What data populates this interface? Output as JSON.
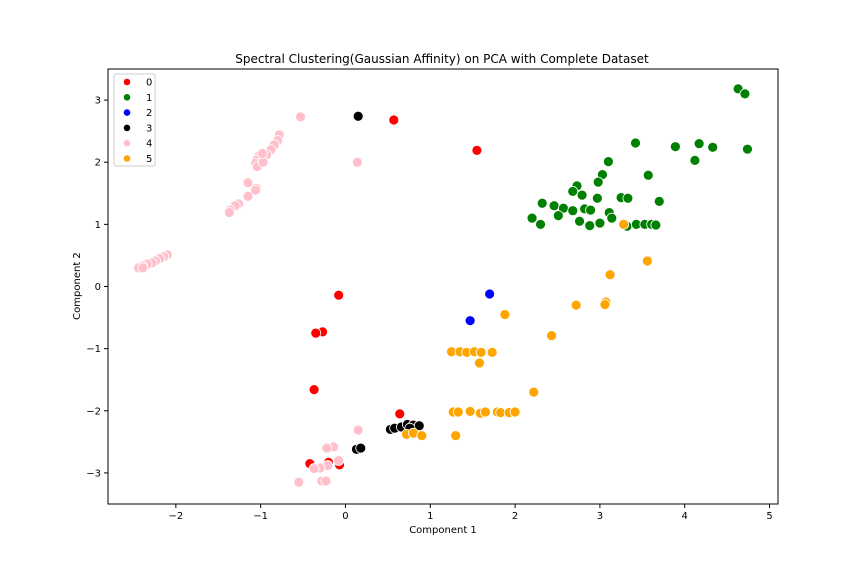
{
  "chart_data": {
    "type": "scatter",
    "title": "Spectral Clustering(Gaussian Affinity) on PCA with Complete Dataset",
    "xlabel": "Component 1",
    "ylabel": "Component 2",
    "xlim": [
      -2.8,
      5.1
    ],
    "ylim": [
      -3.5,
      3.5
    ],
    "xticks": [
      -2,
      -1,
      0,
      1,
      2,
      3,
      4,
      5
    ],
    "yticks": [
      -3,
      -2,
      -1,
      0,
      1,
      2,
      3
    ],
    "xtick_labels": [
      "−2",
      "−1",
      "0",
      "1",
      "2",
      "3",
      "4",
      "5"
    ],
    "ytick_labels": [
      "−3",
      "−2",
      "−1",
      "0",
      "1",
      "2",
      "3"
    ],
    "grid": false,
    "legend_position": "top-left",
    "series": [
      {
        "name": "0",
        "color": "#ff0000",
        "points": [
          [
            0.57,
            2.68
          ],
          [
            1.55,
            2.19
          ],
          [
            -0.08,
            -0.14
          ],
          [
            -0.27,
            -0.73
          ],
          [
            -0.35,
            -0.75
          ],
          [
            -0.37,
            -1.66
          ],
          [
            0.64,
            -2.05
          ],
          [
            -0.42,
            -2.85
          ],
          [
            -0.2,
            -2.83
          ],
          [
            -0.07,
            -2.87
          ]
        ]
      },
      {
        "name": "1",
        "color": "#008000",
        "points": [
          [
            4.63,
            3.18
          ],
          [
            4.71,
            3.1
          ],
          [
            4.74,
            2.21
          ],
          [
            4.33,
            2.24
          ],
          [
            4.17,
            2.3
          ],
          [
            3.89,
            2.25
          ],
          [
            3.42,
            2.31
          ],
          [
            4.12,
            2.03
          ],
          [
            3.1,
            2.01
          ],
          [
            3.03,
            1.8
          ],
          [
            3.57,
            1.79
          ],
          [
            2.98,
            1.68
          ],
          [
            2.73,
            1.62
          ],
          [
            2.68,
            1.53
          ],
          [
            2.79,
            1.47
          ],
          [
            2.97,
            1.42
          ],
          [
            3.25,
            1.43
          ],
          [
            3.33,
            1.42
          ],
          [
            3.7,
            1.37
          ],
          [
            2.32,
            1.34
          ],
          [
            2.46,
            1.3
          ],
          [
            2.57,
            1.26
          ],
          [
            2.68,
            1.22
          ],
          [
            2.82,
            1.25
          ],
          [
            2.89,
            1.23
          ],
          [
            3.11,
            1.19
          ],
          [
            3.14,
            1.1
          ],
          [
            2.2,
            1.1
          ],
          [
            2.51,
            1.14
          ],
          [
            2.76,
            1.05
          ],
          [
            2.88,
            0.98
          ],
          [
            3.0,
            1.02
          ],
          [
            3.32,
            0.97
          ],
          [
            2.3,
            1.0
          ],
          [
            3.43,
            1.0
          ],
          [
            3.53,
            1.0
          ],
          [
            3.61,
            1.0
          ],
          [
            3.66,
            0.99
          ]
        ]
      },
      {
        "name": "2",
        "color": "#0000ff",
        "points": [
          [
            1.7,
            -0.12
          ],
          [
            1.47,
            -0.55
          ]
        ]
      },
      {
        "name": "3",
        "color": "#000000",
        "points": [
          [
            0.15,
            2.74
          ],
          [
            0.53,
            -2.3
          ],
          [
            0.58,
            -2.28
          ],
          [
            0.66,
            -2.26
          ],
          [
            0.73,
            -2.22
          ],
          [
            0.8,
            -2.23
          ],
          [
            0.87,
            -2.24
          ],
          [
            0.76,
            -2.28
          ],
          [
            0.13,
            -2.62
          ],
          [
            0.18,
            -2.6
          ]
        ]
      },
      {
        "name": "4",
        "color": "#ffc0cb",
        "points": [
          [
            -0.53,
            2.73
          ],
          [
            0.14,
            2.0
          ],
          [
            -0.78,
            2.44
          ],
          [
            -0.8,
            2.35
          ],
          [
            -0.84,
            2.28
          ],
          [
            -0.88,
            2.2
          ],
          [
            -0.93,
            2.12
          ],
          [
            -1.02,
            2.1
          ],
          [
            -1.05,
            2.03
          ],
          [
            -1.06,
            1.98
          ],
          [
            -1.04,
            1.93
          ],
          [
            -0.97,
            2.0
          ],
          [
            -0.98,
            2.14
          ],
          [
            -1.15,
            1.67
          ],
          [
            -1.05,
            1.58
          ],
          [
            -1.06,
            1.55
          ],
          [
            -1.15,
            1.45
          ],
          [
            -1.26,
            1.33
          ],
          [
            -1.3,
            1.3
          ],
          [
            -1.36,
            1.23
          ],
          [
            -1.37,
            1.19
          ],
          [
            -2.1,
            0.51
          ],
          [
            -2.14,
            0.48
          ],
          [
            -2.19,
            0.45
          ],
          [
            -2.24,
            0.41
          ],
          [
            -2.28,
            0.38
          ],
          [
            -2.34,
            0.36
          ],
          [
            -2.39,
            0.33
          ],
          [
            -2.44,
            0.3
          ],
          [
            -2.39,
            0.3
          ],
          [
            0.15,
            -2.31
          ],
          [
            -0.14,
            -2.58
          ],
          [
            -0.22,
            -2.6
          ],
          [
            -0.08,
            -2.8
          ],
          [
            -0.21,
            -2.88
          ],
          [
            -0.3,
            -2.92
          ],
          [
            -0.37,
            -2.93
          ],
          [
            -0.28,
            -3.13
          ],
          [
            -0.23,
            -3.13
          ],
          [
            -0.55,
            -3.15
          ]
        ]
      },
      {
        "name": "5",
        "color": "#ffa500",
        "points": [
          [
            3.12,
            0.19
          ],
          [
            3.56,
            0.41
          ],
          [
            3.07,
            -0.25
          ],
          [
            3.06,
            -0.29
          ],
          [
            2.72,
            -0.3
          ],
          [
            1.88,
            -0.45
          ],
          [
            2.43,
            -0.79
          ],
          [
            1.25,
            -1.05
          ],
          [
            1.35,
            -1.05
          ],
          [
            1.43,
            -1.06
          ],
          [
            1.52,
            -1.05
          ],
          [
            1.6,
            -1.06
          ],
          [
            1.73,
            -1.06
          ],
          [
            1.58,
            -1.23
          ],
          [
            2.22,
            -1.7
          ],
          [
            1.27,
            -2.02
          ],
          [
            1.33,
            -2.02
          ],
          [
            1.47,
            -2.01
          ],
          [
            1.59,
            -2.04
          ],
          [
            1.65,
            -2.02
          ],
          [
            1.79,
            -2.02
          ],
          [
            1.83,
            -2.03
          ],
          [
            1.93,
            -2.03
          ],
          [
            2.0,
            -2.02
          ],
          [
            1.3,
            -2.4
          ],
          [
            0.72,
            -2.38
          ],
          [
            0.8,
            -2.36
          ],
          [
            0.9,
            -2.4
          ],
          [
            3.28,
            1.0
          ]
        ]
      }
    ]
  }
}
